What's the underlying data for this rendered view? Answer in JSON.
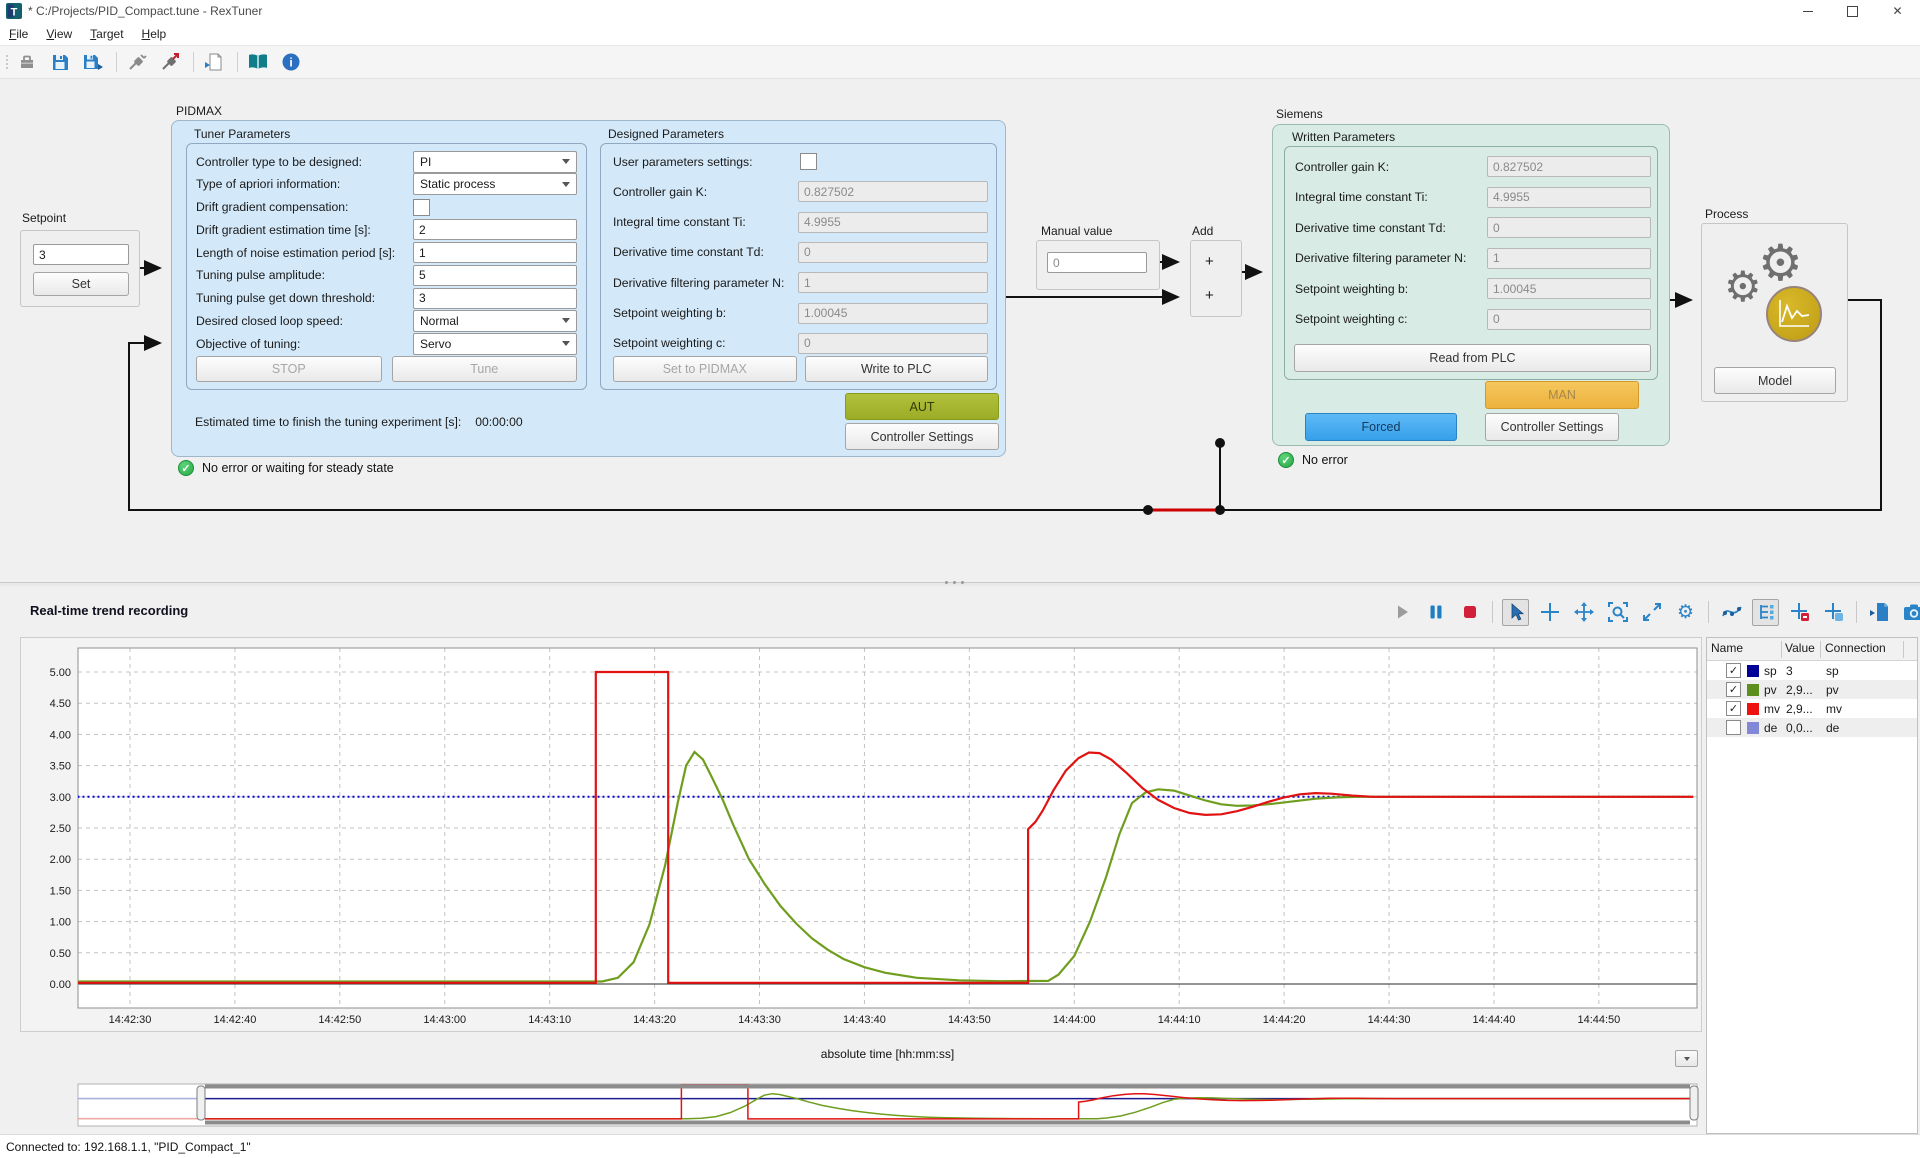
{
  "window": {
    "title": "* C:/Projects/PID_Compact.tune - RexTuner"
  },
  "menu": {
    "items": [
      "File",
      "View",
      "Target",
      "Help"
    ]
  },
  "main_toolbar": {
    "icons": [
      "open-icon",
      "save-icon",
      "save-as-icon",
      "connect-icon",
      "connect-target-icon",
      "export-document-icon",
      "documentation-icon",
      "about-icon"
    ]
  },
  "setpoint": {
    "label": "Setpoint",
    "value": "3",
    "set_button": "Set"
  },
  "pidmax": {
    "title": "PIDMAX",
    "tuner": {
      "title": "Tuner Parameters",
      "rows": [
        {
          "label": "Controller type to be designed:",
          "value": "PI"
        },
        {
          "label": "Type of apriori information:",
          "value": "Static process"
        },
        {
          "label": "Drift gradient compensation:",
          "value": ""
        },
        {
          "label": "Drift gradient estimation time [s]:",
          "value": "2"
        },
        {
          "label": "Length of noise estimation period [s]:",
          "value": "1"
        },
        {
          "label": "Tuning pulse amplitude:",
          "value": "5"
        },
        {
          "label": "Tuning pulse get down threshold:",
          "value": "3"
        },
        {
          "label": "Desired closed loop speed:",
          "value": "Normal"
        },
        {
          "label": "Objective of tuning:",
          "value": "Servo"
        }
      ],
      "stop_button": "STOP",
      "tune_button": "Tune"
    },
    "designed": {
      "title": "Designed Parameters",
      "user_settings_label": "User parameters settings:",
      "rows": [
        {
          "label": "Controller gain K:",
          "value": "0.827502"
        },
        {
          "label": "Integral time constant Ti:",
          "value": "4.9955"
        },
        {
          "label": "Derivative time constant Td:",
          "value": "0"
        },
        {
          "label": "Derivative filtering parameter N:",
          "value": "1"
        },
        {
          "label": "Setpoint weighting b:",
          "value": "1.00045"
        },
        {
          "label": "Setpoint weighting c:",
          "value": "0"
        }
      ],
      "set_to_pidmax_button": "Set to PIDMAX",
      "write_to_plc_button": "Write to PLC"
    },
    "estimated_label": "Estimated time to finish the tuning experiment [s]:",
    "estimated_value": "00:00:00",
    "aut_button": "AUT",
    "controller_settings_button": "Controller Settings",
    "status": "No error or waiting for steady state"
  },
  "manual": {
    "label": "Manual value",
    "value": "0"
  },
  "add": {
    "label": "Add",
    "input1": "+",
    "input2": "+"
  },
  "siemens": {
    "title": "Siemens",
    "written": {
      "title": "Written Parameters",
      "rows": [
        {
          "label": "Controller gain K:",
          "value": "0.827502"
        },
        {
          "label": "Integral time constant Ti:",
          "value": "4.9955"
        },
        {
          "label": "Derivative time constant Td:",
          "value": "0"
        },
        {
          "label": "Derivative filtering parameter N:",
          "value": "1"
        },
        {
          "label": "Setpoint weighting b:",
          "value": "1.00045"
        },
        {
          "label": "Setpoint weighting c:",
          "value": "0"
        }
      ],
      "read_button": "Read from PLC"
    },
    "man_button": "MAN",
    "forced_button": "Forced",
    "controller_settings_button": "Controller Settings",
    "status": "No error"
  },
  "process": {
    "label": "Process",
    "model_button": "Model"
  },
  "trend": {
    "title": "Real-time trend recording",
    "toolbar_icons": [
      "play-icon",
      "pause-icon",
      "stop-icon",
      "cursor-icon",
      "crosshair-icon",
      "pan-icon",
      "zoom-rect-icon",
      "zoom-fit-icon",
      "settings-icon",
      "spline-icon",
      "legend-icon",
      "cursor-remove-icon",
      "cursor-add-icon",
      "export-icon",
      "camera-icon"
    ],
    "legend": {
      "headers": [
        "Name",
        "Value",
        "Connection"
      ],
      "rows": [
        {
          "checked": true,
          "color": "#000099",
          "name": "sp",
          "value": "3",
          "connection": "sp"
        },
        {
          "checked": true,
          "color": "#5d8f1e",
          "name": "pv",
          "value": "2,9...",
          "connection": "pv"
        },
        {
          "checked": true,
          "color": "#ee1111",
          "name": "mv",
          "value": "2,9...",
          "connection": "mv"
        },
        {
          "checked": false,
          "color": "#8288d8",
          "name": "de",
          "value": "0,0...",
          "connection": "de"
        }
      ]
    },
    "xlabel": "absolute time [hh:mm:ss]"
  },
  "statusbar": {
    "text": "Connected to: 192.168.1.1, \"PID_Compact_1\""
  },
  "chart_data": {
    "type": "line",
    "title": "",
    "xlabel": "absolute time [hh:mm:ss]",
    "ylabel": "",
    "grid": true,
    "legend_position": "right-panel",
    "t0": "14:42:25",
    "x_ticks": [
      "14:42:30",
      "14:42:40",
      "14:42:50",
      "14:43:00",
      "14:43:10",
      "14:43:20",
      "14:43:30",
      "14:43:40",
      "14:43:50",
      "14:44:00",
      "14:44:10",
      "14:44:20",
      "14:44:30",
      "14:44:40",
      "14:44:50"
    ],
    "y_ticks": [
      "5.00",
      "4.50",
      "4.00",
      "3.50",
      "3.00",
      "2.50",
      "2.00",
      "1.50",
      "1.00",
      "0.50",
      "0.00"
    ],
    "ylim": [
      -0.38,
      5.38
    ],
    "series": [
      {
        "name": "sp",
        "color": "#0000cc",
        "navColor": "#1b1b8f",
        "dash": "2 3",
        "width": 2,
        "points": [
          [
            0,
            3
          ],
          [
            154,
            3
          ]
        ]
      },
      {
        "name": "pv",
        "color": "#6f9e1f",
        "width": 2.2,
        "points": [
          [
            0,
            0.04
          ],
          [
            50,
            0.04
          ],
          [
            51.5,
            0.1
          ],
          [
            53,
            0.35
          ],
          [
            54.5,
            0.95
          ],
          [
            56,
            1.9
          ],
          [
            57.2,
            2.9
          ],
          [
            58,
            3.5
          ],
          [
            58.8,
            3.72
          ],
          [
            59.6,
            3.6
          ],
          [
            60.5,
            3.3
          ],
          [
            61.5,
            2.95
          ],
          [
            62.5,
            2.55
          ],
          [
            64,
            2.0
          ],
          [
            65.5,
            1.6
          ],
          [
            67,
            1.25
          ],
          [
            68.5,
            0.97
          ],
          [
            70,
            0.73
          ],
          [
            71.5,
            0.55
          ],
          [
            73,
            0.4
          ],
          [
            75,
            0.27
          ],
          [
            77,
            0.18
          ],
          [
            80,
            0.1
          ],
          [
            84,
            0.06
          ],
          [
            88,
            0.045
          ],
          [
            92.5,
            0.05
          ],
          [
            93.5,
            0.15
          ],
          [
            95,
            0.45
          ],
          [
            96.5,
            1.0
          ],
          [
            98,
            1.7
          ],
          [
            99.3,
            2.4
          ],
          [
            100.5,
            2.9
          ],
          [
            101.8,
            3.07
          ],
          [
            103,
            3.12
          ],
          [
            104.5,
            3.1
          ],
          [
            106,
            3.02
          ],
          [
            107.5,
            2.94
          ],
          [
            109,
            2.88
          ],
          [
            110.5,
            2.855
          ],
          [
            112,
            2.86
          ],
          [
            114,
            2.89
          ],
          [
            116,
            2.93
          ],
          [
            118,
            2.97
          ],
          [
            120,
            2.99
          ],
          [
            122,
            3.0
          ],
          [
            154,
            3.0
          ]
        ]
      },
      {
        "name": "mv",
        "color": "#e01212",
        "width": 2.2,
        "points": [
          [
            0,
            0.02
          ],
          [
            49.4,
            0.02
          ],
          [
            49.4,
            5.0
          ],
          [
            56.3,
            5.0
          ],
          [
            56.3,
            0.02
          ],
          [
            90.6,
            0.02
          ],
          [
            90.6,
            2.48
          ],
          [
            91.3,
            2.6
          ],
          [
            92,
            2.78
          ],
          [
            93,
            3.1
          ],
          [
            94.2,
            3.42
          ],
          [
            95.4,
            3.62
          ],
          [
            96.4,
            3.71
          ],
          [
            97.4,
            3.7
          ],
          [
            98.5,
            3.6
          ],
          [
            100,
            3.38
          ],
          [
            101.5,
            3.14
          ],
          [
            103,
            2.95
          ],
          [
            104.5,
            2.82
          ],
          [
            106,
            2.74
          ],
          [
            107.5,
            2.71
          ],
          [
            109,
            2.72
          ],
          [
            110.5,
            2.77
          ],
          [
            112,
            2.84
          ],
          [
            113.5,
            2.92
          ],
          [
            115,
            2.99
          ],
          [
            116.5,
            3.04
          ],
          [
            118,
            3.06
          ],
          [
            119.5,
            3.05
          ],
          [
            121.5,
            3.02
          ],
          [
            123.5,
            3.0
          ],
          [
            154,
            3.0
          ]
        ]
      }
    ]
  }
}
